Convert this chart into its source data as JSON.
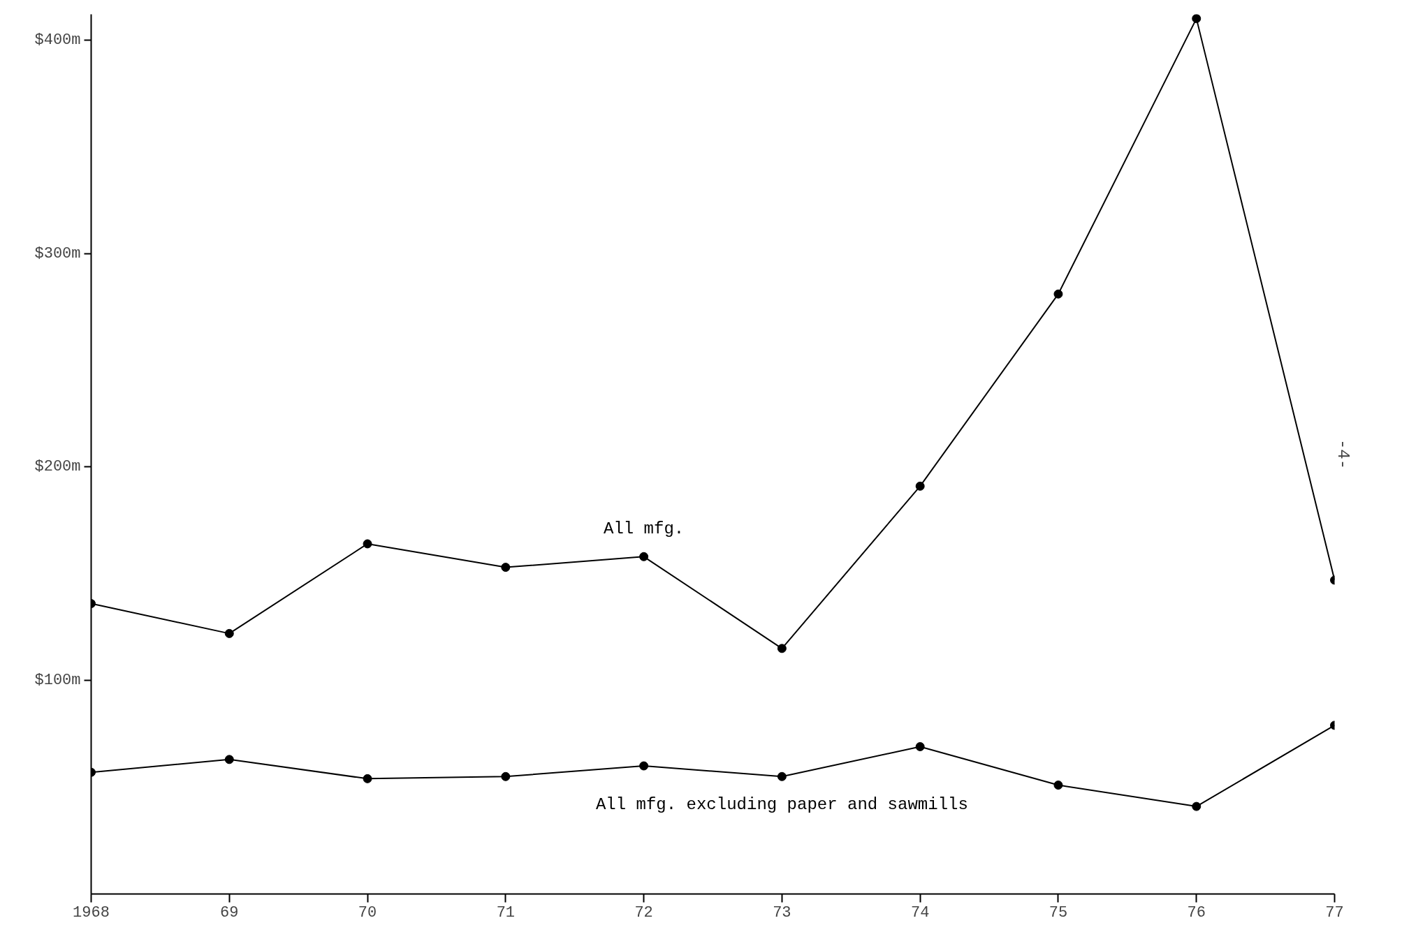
{
  "chart_data": {
    "type": "line",
    "x": [
      1968,
      1969,
      1970,
      1971,
      1972,
      1973,
      1974,
      1975,
      1976,
      1977
    ],
    "series": [
      {
        "name": "All mfg.",
        "color": "#000000",
        "values": [
          136,
          122,
          164,
          153,
          158,
          115,
          191,
          281,
          410,
          147
        ]
      },
      {
        "name": "All mfg. excluding paper and sawmills",
        "color": "#000000",
        "values": [
          57,
          63,
          54,
          55,
          60,
          55,
          69,
          51,
          41,
          79
        ]
      }
    ],
    "xlim": [
      1968,
      1977
    ],
    "xticks": [
      1968,
      {
        "value": 1969,
        "label": "69"
      },
      {
        "value": 1970,
        "label": "70"
      },
      {
        "value": 1971,
        "label": "71"
      },
      {
        "value": 1972,
        "label": "72"
      },
      {
        "value": 1973,
        "label": "73"
      },
      {
        "value": 1974,
        "label": "74"
      },
      {
        "value": 1975,
        "label": "75"
      },
      {
        "value": 1976,
        "label": "76"
      },
      {
        "value": 1977,
        "label": "77"
      }
    ],
    "ylim": [
      0,
      412
    ],
    "yticks": [
      {
        "value": 100,
        "label": "$100m"
      },
      {
        "value": 200,
        "label": "$200m"
      },
      {
        "value": 300,
        "label": "$300m"
      },
      {
        "value": 400,
        "label": "$400m"
      }
    ],
    "annotations": [
      "-4-"
    ],
    "marker": "circle",
    "line_style": "solid",
    "grid": false,
    "legend": false
  }
}
